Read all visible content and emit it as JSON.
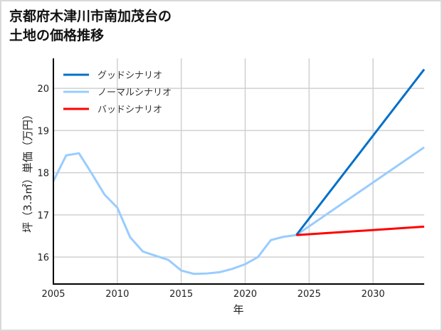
{
  "chart_data": {
    "type": "line",
    "title_line1": "京都府木津川市南加茂台の",
    "title_line2": "土地の価格推移",
    "xlabel": "年",
    "ylabel": "坪（3.3㎡）単価（万円）",
    "xlim": [
      2005,
      2034
    ],
    "ylim": [
      15.36,
      20.71
    ],
    "xticks": [
      2005,
      2010,
      2015,
      2020,
      2025,
      2030
    ],
    "yticks": [
      16,
      17,
      18,
      19,
      20
    ],
    "grid": true,
    "legend_position": "top-left",
    "series": [
      {
        "name": "グッドシナリオ",
        "color": "#0070c8",
        "x": [
          2024,
          2034
        ],
        "y": [
          16.52,
          20.45
        ]
      },
      {
        "name": "ノーマルシナリオ",
        "color": "#99ccff",
        "x": [
          2005,
          2006,
          2007,
          2008,
          2009,
          2010,
          2011,
          2012,
          2013,
          2014,
          2015,
          2016,
          2017,
          2018,
          2019,
          2020,
          2021,
          2022,
          2023,
          2024,
          2034
        ],
        "y": [
          17.8,
          18.41,
          18.46,
          17.98,
          17.48,
          17.17,
          16.47,
          16.13,
          16.03,
          15.93,
          15.68,
          15.6,
          15.61,
          15.64,
          15.72,
          15.83,
          16.0,
          16.4,
          16.48,
          16.52,
          18.6
        ]
      },
      {
        "name": "バッドシナリオ",
        "color": "#ff0000",
        "x": [
          2024,
          2034
        ],
        "y": [
          16.52,
          16.72
        ]
      }
    ]
  }
}
